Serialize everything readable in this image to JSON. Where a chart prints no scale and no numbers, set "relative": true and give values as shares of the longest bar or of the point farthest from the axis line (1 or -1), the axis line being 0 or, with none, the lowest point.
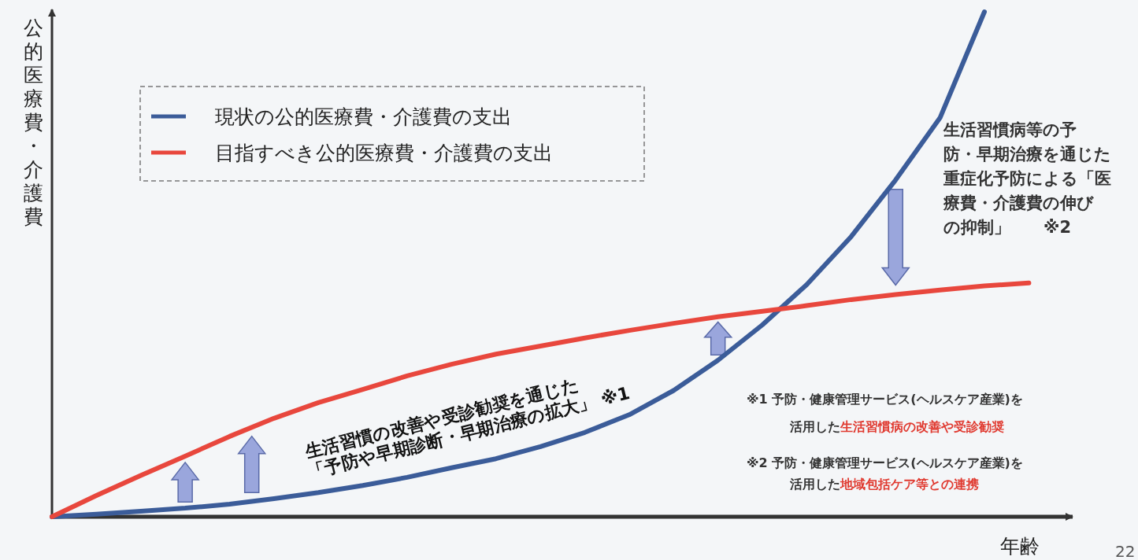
{
  "chart_data": {
    "type": "line",
    "relative": true,
    "ylabel": "公的医療費・介護費",
    "xlabel": "年齢",
    "legend": "top left",
    "categories": [
      null,
      null,
      null,
      null,
      null,
      null,
      null,
      null,
      null,
      null,
      null,
      null,
      null,
      null,
      null,
      null,
      null,
      null,
      null,
      null,
      null,
      null,
      null
    ],
    "series": [
      {
        "name": "現状の公的医療費・介護費の支出",
        "color": "#3b5c99",
        "values": [
          0,
          0.005,
          0.011,
          0.017,
          0.025,
          0.036,
          0.048,
          0.062,
          0.078,
          0.097,
          0.115,
          0.139,
          0.167,
          0.202,
          0.25,
          0.31,
          0.38,
          0.46,
          0.555,
          0.667,
          0.79,
          1,
          null
        ]
      },
      {
        "name": "目指すべき公的医療費・介護費の支出",
        "color": "#e8473d",
        "values": [
          0,
          0.042,
          0.082,
          0.12,
          0.159,
          0.195,
          0.226,
          0.252,
          0.279,
          0.302,
          0.322,
          0.338,
          0.354,
          0.369,
          0.383,
          0.396,
          0.407,
          0.418,
          0.43,
          0.44,
          0.449,
          0.457,
          0.463
        ]
      }
    ],
    "annotations": [
      "生活習慣の改善や受診勧奨を通じた",
      "「予防や早期診断・早期治療の拡大」 ※1",
      "生活習慣病等の予",
      "防・早期治療を通じた",
      "重症化予防による「医",
      "療費・介護費の伸び",
      "の抑制」　　※2",
      "※1 予防・健康管理サービス(ヘルスケア産業)を",
      "活用した",
      "生活習慣病の改善や受診勧奨",
      "※2 予防・健康管理サービス(ヘルスケア産業)を",
      "活用した",
      "地域包括ケア等との連携",
      "22"
    ]
  }
}
